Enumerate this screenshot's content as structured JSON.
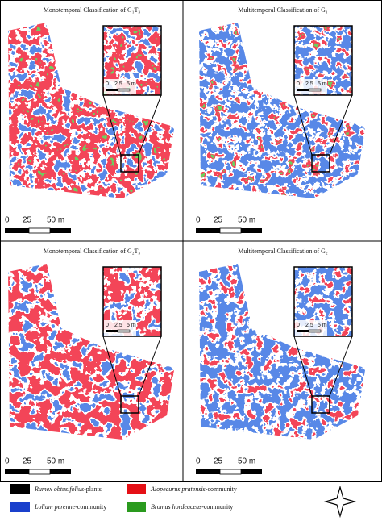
{
  "panels": [
    {
      "title": "Monotemporal Classification of G₁T₃",
      "scale": [
        "0",
        "25",
        "50 m"
      ],
      "inset_scale": [
        "0",
        "2.5",
        "5 m"
      ]
    },
    {
      "title": "Multitemporal Classification of G₁",
      "scale": [
        "0",
        "25",
        "50 m"
      ],
      "inset_scale": [
        "0",
        "2.5",
        "5 m"
      ]
    },
    {
      "title": "Monotemporal Classification of G₂T₃",
      "scale": [
        "0",
        "25",
        "50 m"
      ],
      "inset_scale": [
        "0",
        "2.5",
        "5 m"
      ]
    },
    {
      "title": "Multitemporal Classification of G₂",
      "scale": [
        "0",
        "25",
        "50 m"
      ],
      "inset_scale": [
        "0",
        "2.5",
        "5 m"
      ]
    }
  ],
  "legend": [
    {
      "species": "Rumex obtusifolius",
      "suffix": "-plants"
    },
    {
      "species": "Alopecurus pratensis",
      "suffix": "-community"
    },
    {
      "species": "Lolium perenne",
      "suffix": "-community"
    },
    {
      "species": "Bromus hordeaceus",
      "suffix": "-community"
    }
  ]
}
